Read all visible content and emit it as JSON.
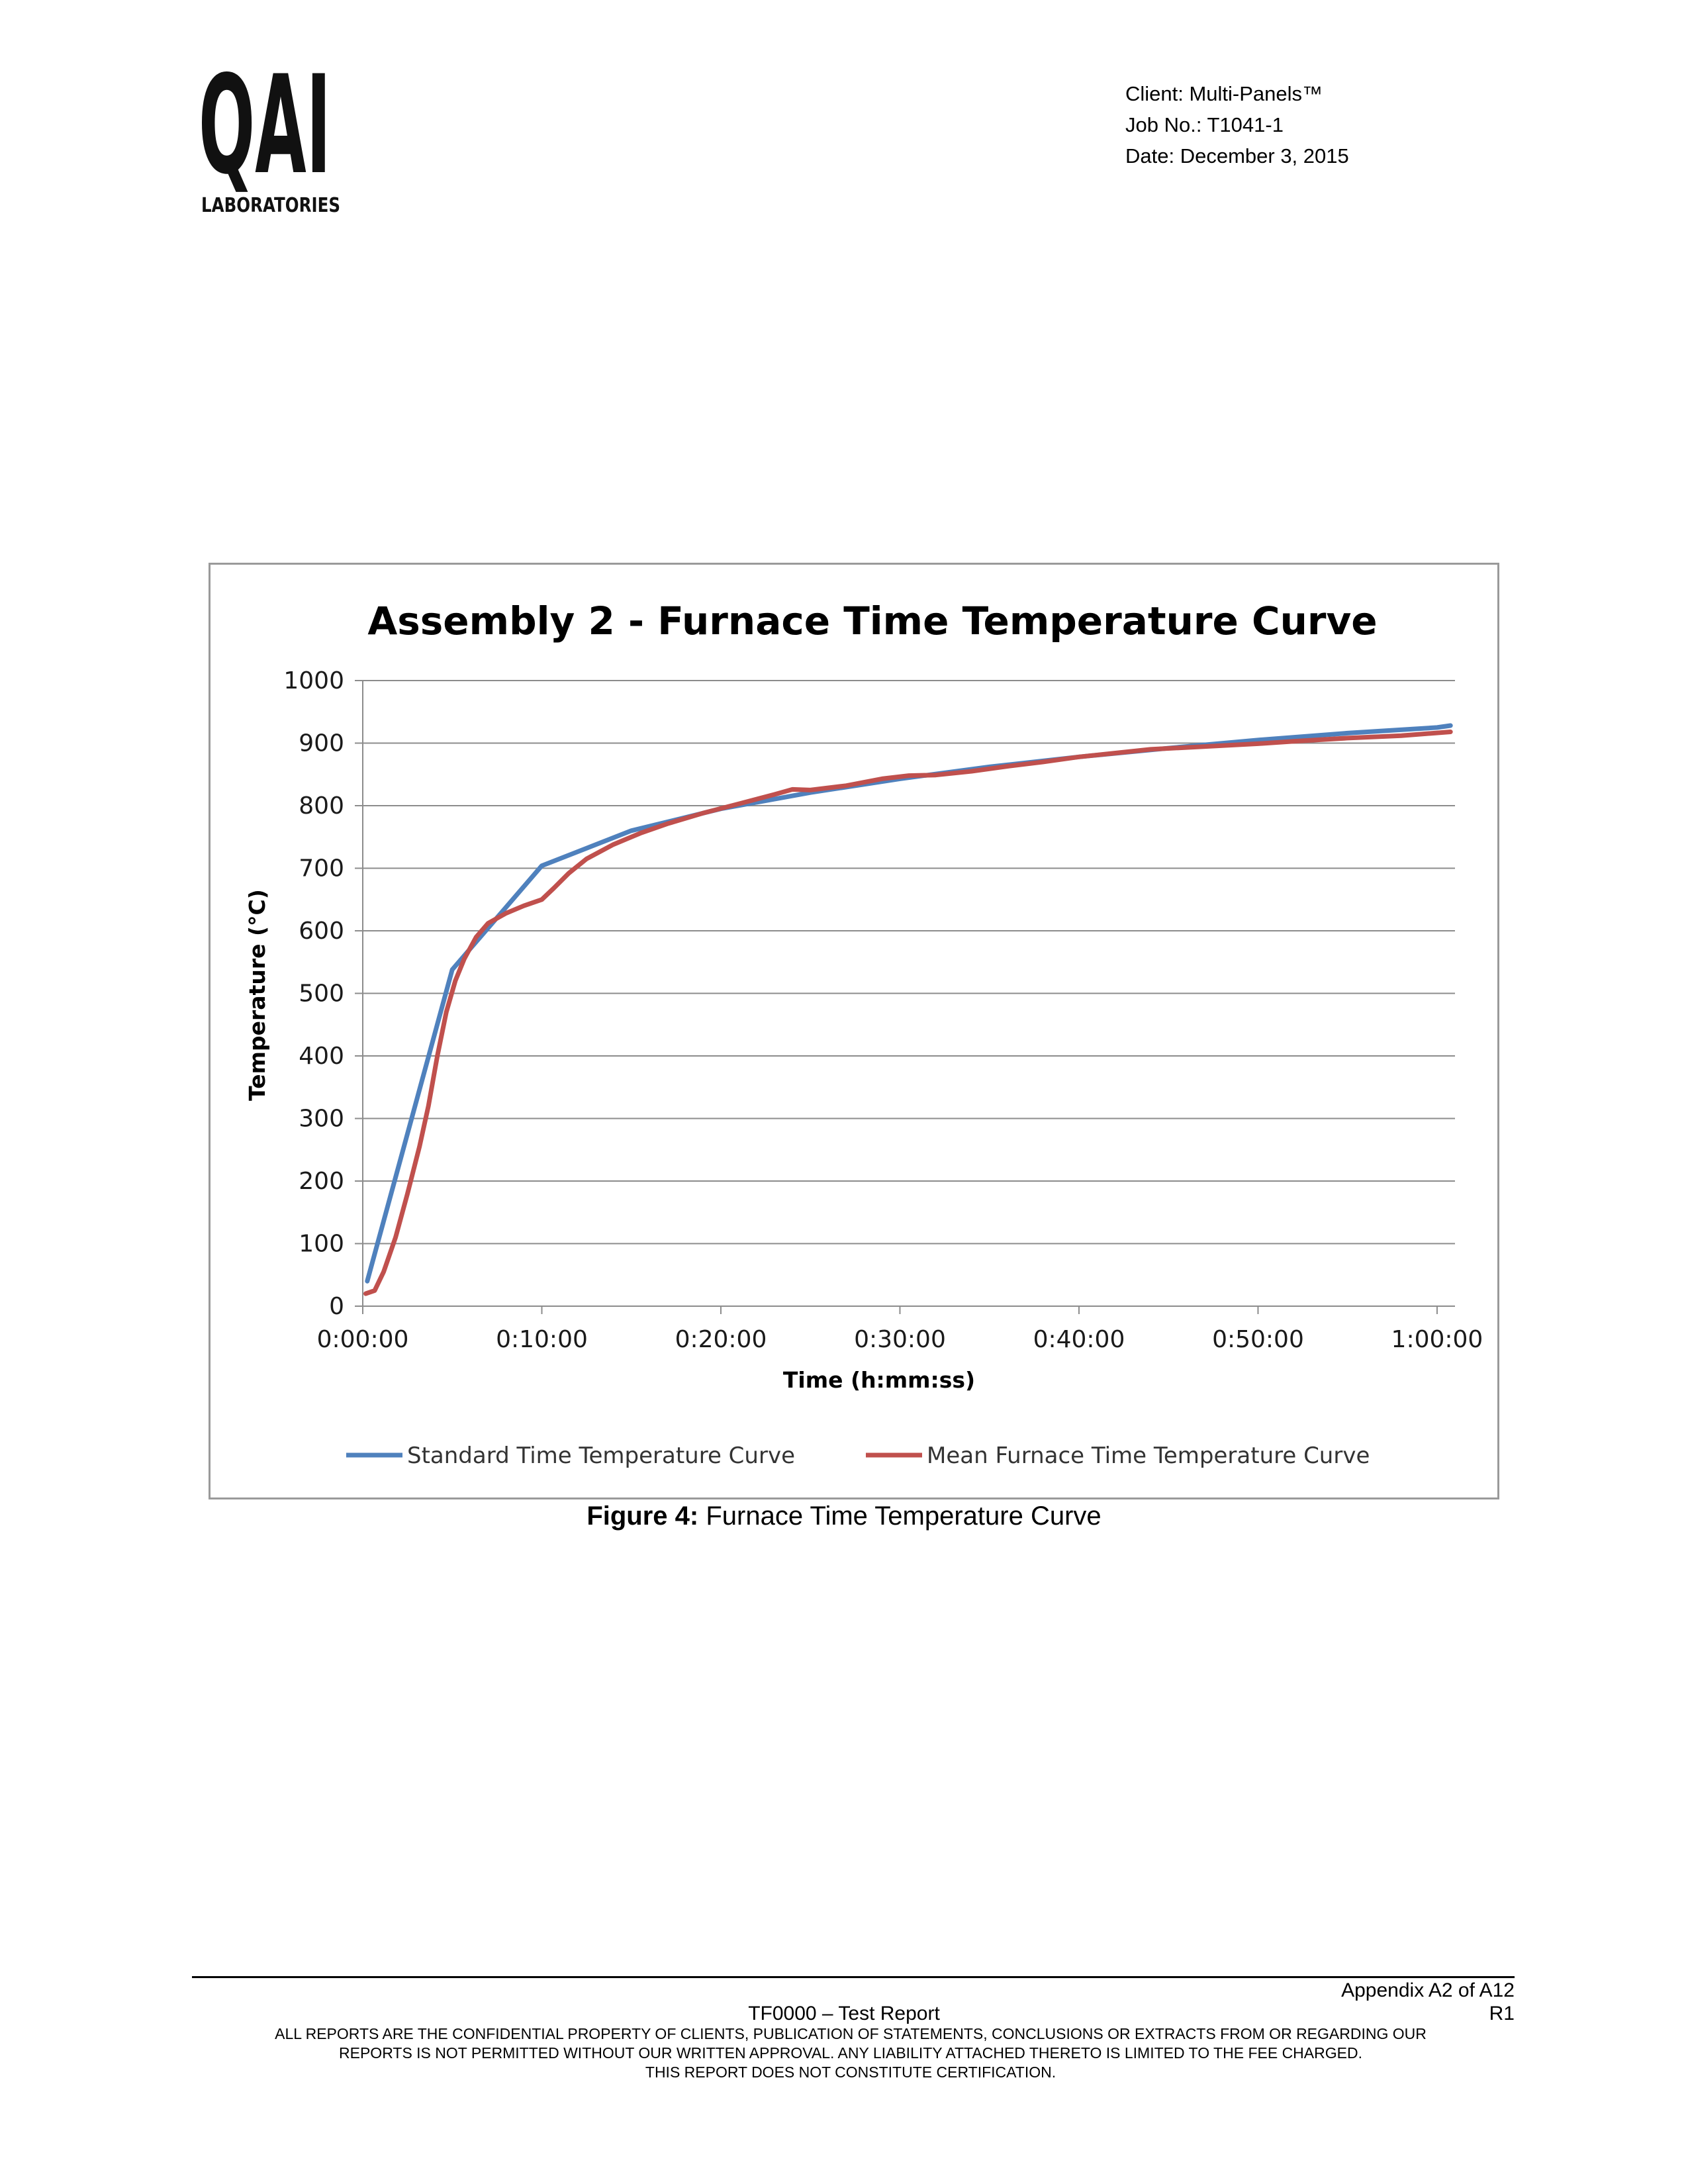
{
  "logo": {
    "text": "QAI",
    "subtext": "LABORATORIES"
  },
  "header": {
    "client": "Client: Multi-Panels™",
    "job": "Job No.: T1041-1",
    "date": "Date: December 3, 2015"
  },
  "chart_data": {
    "type": "line",
    "title": "Assembly 2 - Furnace Time Temperature Curve",
    "xlabel": "Time (h:mm:ss)",
    "ylabel": "Temperature (°C)",
    "ylim": [
      0,
      1000
    ],
    "xlim": [
      "0:00:00",
      "1:01:00"
    ],
    "x_ticks": [
      "0:00:00",
      "0:10:00",
      "0:20:00",
      "0:30:00",
      "0:40:00",
      "0:50:00",
      "1:00:00"
    ],
    "y_ticks": [
      0,
      100,
      200,
      300,
      400,
      500,
      600,
      700,
      800,
      900,
      1000
    ],
    "grid": "horizontal",
    "legend_position": "bottom",
    "series": [
      {
        "name": "Standard Time Temperature Curve",
        "color": "#4f81bd",
        "x": [
          "0:00:15",
          "0:05:00",
          "0:10:00",
          "0:15:00",
          "0:20:00",
          "0:25:00",
          "0:30:00",
          "0:35:00",
          "0:40:00",
          "0:45:00",
          "0:50:00",
          "0:55:00",
          "1:00:00",
          "1:00:45"
        ],
        "values": [
          40,
          538,
          704,
          760,
          795,
          821,
          843,
          862,
          878,
          892,
          905,
          916,
          925,
          928
        ]
      },
      {
        "name": "Mean Furnace Time Temperature Curve",
        "color": "#c0504d",
        "x": [
          "0:00:10",
          "0:00:40",
          "0:01:10",
          "0:01:50",
          "0:02:30",
          "0:03:10",
          "0:03:40",
          "0:04:10",
          "0:04:40",
          "0:05:10",
          "0:05:40",
          "0:06:20",
          "0:07:00",
          "0:08:00",
          "0:09:00",
          "0:10:00",
          "0:10:40",
          "0:11:30",
          "0:12:30",
          "0:14:00",
          "0:15:30",
          "0:17:00",
          "0:19:00",
          "0:21:00",
          "0:23:00",
          "0:24:00",
          "0:25:00",
          "0:27:00",
          "0:29:00",
          "0:30:30",
          "0:32:00",
          "0:34:00",
          "0:36:00",
          "0:38:00",
          "0:40:00",
          "0:42:00",
          "0:44:00",
          "0:46:00",
          "0:48:00",
          "0:50:00",
          "0:52:00",
          "0:55:00",
          "0:58:00",
          "1:00:45"
        ],
        "values": [
          20,
          25,
          55,
          110,
          180,
          255,
          320,
          400,
          470,
          520,
          555,
          590,
          612,
          628,
          640,
          650,
          668,
          692,
          715,
          738,
          756,
          771,
          788,
          803,
          818,
          826,
          825,
          832,
          843,
          848,
          849,
          855,
          863,
          870,
          878,
          884,
          890,
          893,
          896,
          899,
          903,
          908,
          912,
          918
        ]
      }
    ]
  },
  "caption": {
    "label": "Figure 4:",
    "text": "Furnace Time Temperature Curve"
  },
  "footer": {
    "appendix": "Appendix A2 of A12",
    "report": "TF0000 – Test Report",
    "revision": "R1",
    "disclaimer_1": "ALL REPORTS ARE THE CONFIDENTIAL PROPERTY OF CLIENTS, PUBLICATION OF STATEMENTS, CONCLUSIONS OR EXTRACTS FROM OR REGARDING OUR",
    "disclaimer_2": "REPORTS IS NOT PERMITTED WITHOUT OUR WRITTEN APPROVAL. ANY LIABILITY ATTACHED THERETO IS LIMITED TO THE FEE CHARGED.",
    "disclaimer_3": "THIS REPORT DOES NOT CONSTITUTE CERTIFICATION."
  }
}
